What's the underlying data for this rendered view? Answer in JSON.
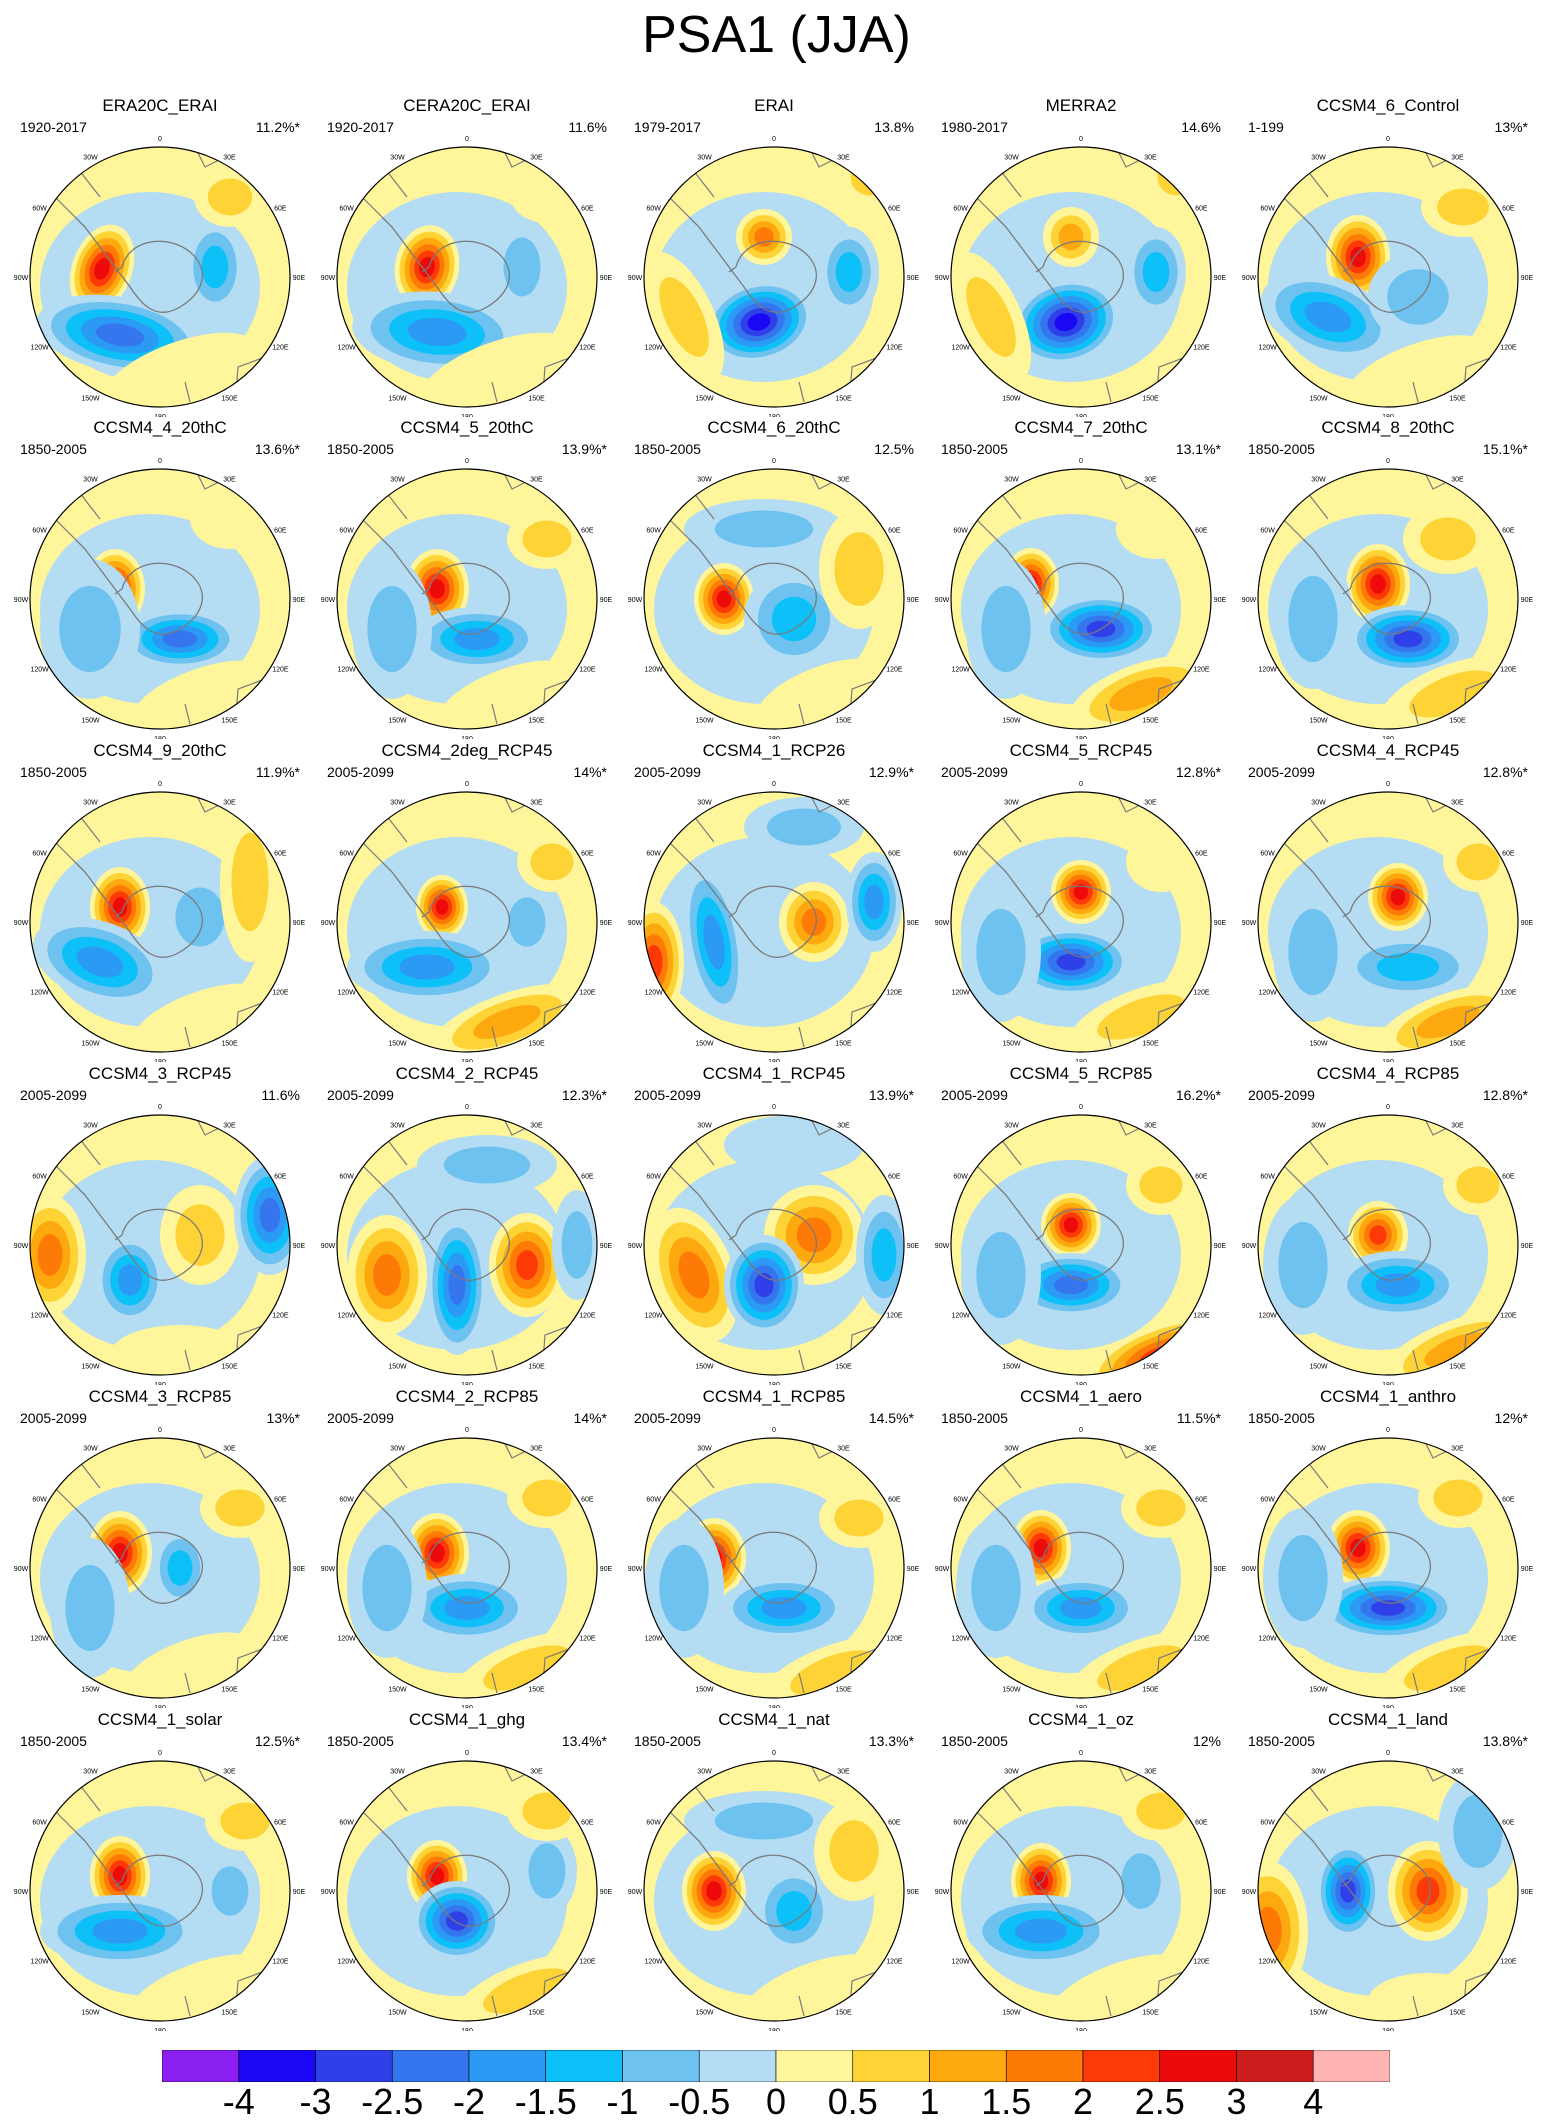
{
  "title": "PSA1 (JJA)",
  "map_labels": {
    "lon_0": "0",
    "lon_30e": "30E",
    "lon_60e": "60E",
    "lon_90e": "90E",
    "lon_120e": "120E",
    "lon_150e": "150E",
    "lon_180": "180",
    "lon_150w": "150W",
    "lon_120w": "120W",
    "lon_90w": "90W",
    "lon_60w": "60W",
    "lon_30w": "30W"
  },
  "panels": [
    {
      "title": "ERA20C_ERAI",
      "period": "1920-2017",
      "variance": "11.2%*"
    },
    {
      "title": "CERA20C_ERAI",
      "period": "1920-2017",
      "variance": "11.6%"
    },
    {
      "title": "ERAI",
      "period": "1979-2017",
      "variance": "13.8%"
    },
    {
      "title": "MERRA2",
      "period": "1980-2017",
      "variance": "14.6%"
    },
    {
      "title": "CCSM4_6_Control",
      "period": "1-199",
      "variance": "13%*"
    },
    {
      "title": "CCSM4_4_20thC",
      "period": "1850-2005",
      "variance": "13.6%*"
    },
    {
      "title": "CCSM4_5_20thC",
      "period": "1850-2005",
      "variance": "13.9%*"
    },
    {
      "title": "CCSM4_6_20thC",
      "period": "1850-2005",
      "variance": "12.5%"
    },
    {
      "title": "CCSM4_7_20thC",
      "period": "1850-2005",
      "variance": "13.1%*"
    },
    {
      "title": "CCSM4_8_20thC",
      "period": "1850-2005",
      "variance": "15.1%*"
    },
    {
      "title": "CCSM4_9_20thC",
      "period": "1850-2005",
      "variance": "11.9%*"
    },
    {
      "title": "CCSM4_2deg_RCP45",
      "period": "2005-2099",
      "variance": "14%*"
    },
    {
      "title": "CCSM4_1_RCP26",
      "period": "2005-2099",
      "variance": "12.9%*"
    },
    {
      "title": "CCSM4_5_RCP45",
      "period": "2005-2099",
      "variance": "12.8%*"
    },
    {
      "title": "CCSM4_4_RCP45",
      "period": "2005-2099",
      "variance": "12.8%*"
    },
    {
      "title": "CCSM4_3_RCP45",
      "period": "2005-2099",
      "variance": "11.6%"
    },
    {
      "title": "CCSM4_2_RCP45",
      "period": "2005-2099",
      "variance": "12.3%*"
    },
    {
      "title": "CCSM4_1_RCP45",
      "period": "2005-2099",
      "variance": "13.9%*"
    },
    {
      "title": "CCSM4_5_RCP85",
      "period": "2005-2099",
      "variance": "16.2%*"
    },
    {
      "title": "CCSM4_4_RCP85",
      "period": "2005-2099",
      "variance": "12.8%*"
    },
    {
      "title": "CCSM4_3_RCP85",
      "period": "2005-2099",
      "variance": "13%*"
    },
    {
      "title": "CCSM4_2_RCP85",
      "period": "2005-2099",
      "variance": "14%*"
    },
    {
      "title": "CCSM4_1_RCP85",
      "period": "2005-2099",
      "variance": "14.5%*"
    },
    {
      "title": "CCSM4_1_aero",
      "period": "1850-2005",
      "variance": "11.5%*"
    },
    {
      "title": "CCSM4_1_anthro",
      "period": "1850-2005",
      "variance": "12%*"
    },
    {
      "title": "CCSM4_1_solar",
      "period": "1850-2005",
      "variance": "12.5%*"
    },
    {
      "title": "CCSM4_1_ghg",
      "period": "1850-2005",
      "variance": "13.4%*"
    },
    {
      "title": "CCSM4_1_nat",
      "period": "1850-2005",
      "variance": "13.3%*"
    },
    {
      "title": "CCSM4_1_oz",
      "period": "1850-2005",
      "variance": "12%"
    },
    {
      "title": "CCSM4_1_land",
      "period": "1850-2005",
      "variance": "13.8%*"
    }
  ],
  "colorbar": {
    "labels": [
      "-4",
      "-3",
      "-2.5",
      "-2",
      "-1.5",
      "-1",
      "-0.5",
      "0",
      "0.5",
      "1",
      "1.5",
      "2",
      "2.5",
      "3",
      "4"
    ],
    "colors": [
      "#8a1ff0",
      "#1a08f5",
      "#3040e8",
      "#3575ee",
      "#2a9af5",
      "#0ec0f8",
      "#6dc2f0",
      "#b4dcf3",
      "#fff59a",
      "#fdd335",
      "#fca80e",
      "#fd7a06",
      "#fd3a07",
      "#ec0a0a",
      "#cc1c1c",
      "#ffb3b3"
    ]
  },
  "palette": {
    "coast": "#7a7a7a",
    "axis": "#000000"
  }
}
